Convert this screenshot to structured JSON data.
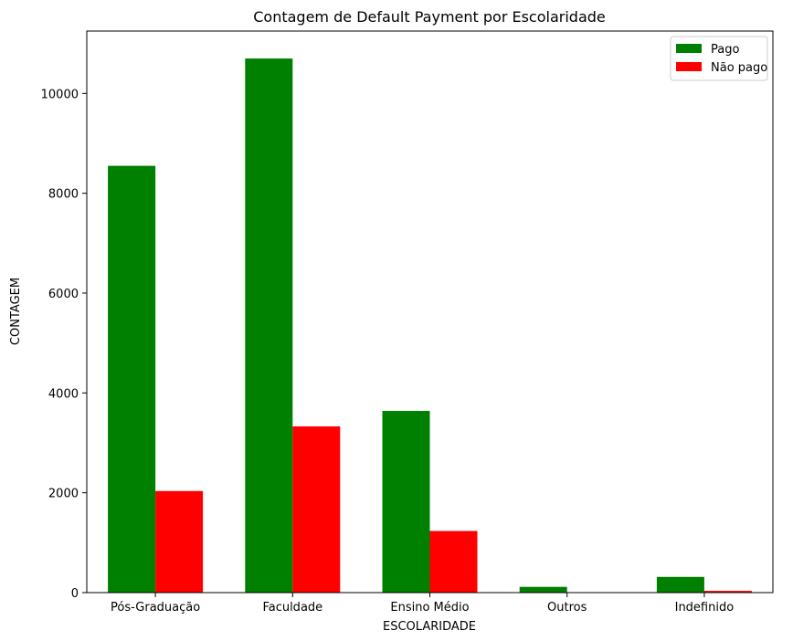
{
  "chart_data": {
    "type": "bar",
    "title": "Contagem de Default Payment por Escolaridade",
    "xlabel": "ESCOLARIDADE",
    "ylabel": "CONTAGEM",
    "categories": [
      "Pós-Graduação",
      "Faculdade",
      "Ensino Médio",
      "Outros",
      "Indefinido"
    ],
    "series": [
      {
        "name": "Pago",
        "color": "#008000",
        "values": [
          8550,
          10700,
          3640,
          115,
          315
        ]
      },
      {
        "name": "Não pago",
        "color": "#ff0000",
        "values": [
          2035,
          3330,
          1235,
          5,
          35
        ]
      }
    ],
    "ylim": [
      0,
      11250
    ],
    "yticks": [
      0,
      2000,
      4000,
      6000,
      8000,
      10000
    ],
    "grid": false,
    "legend_position": "top-right"
  }
}
